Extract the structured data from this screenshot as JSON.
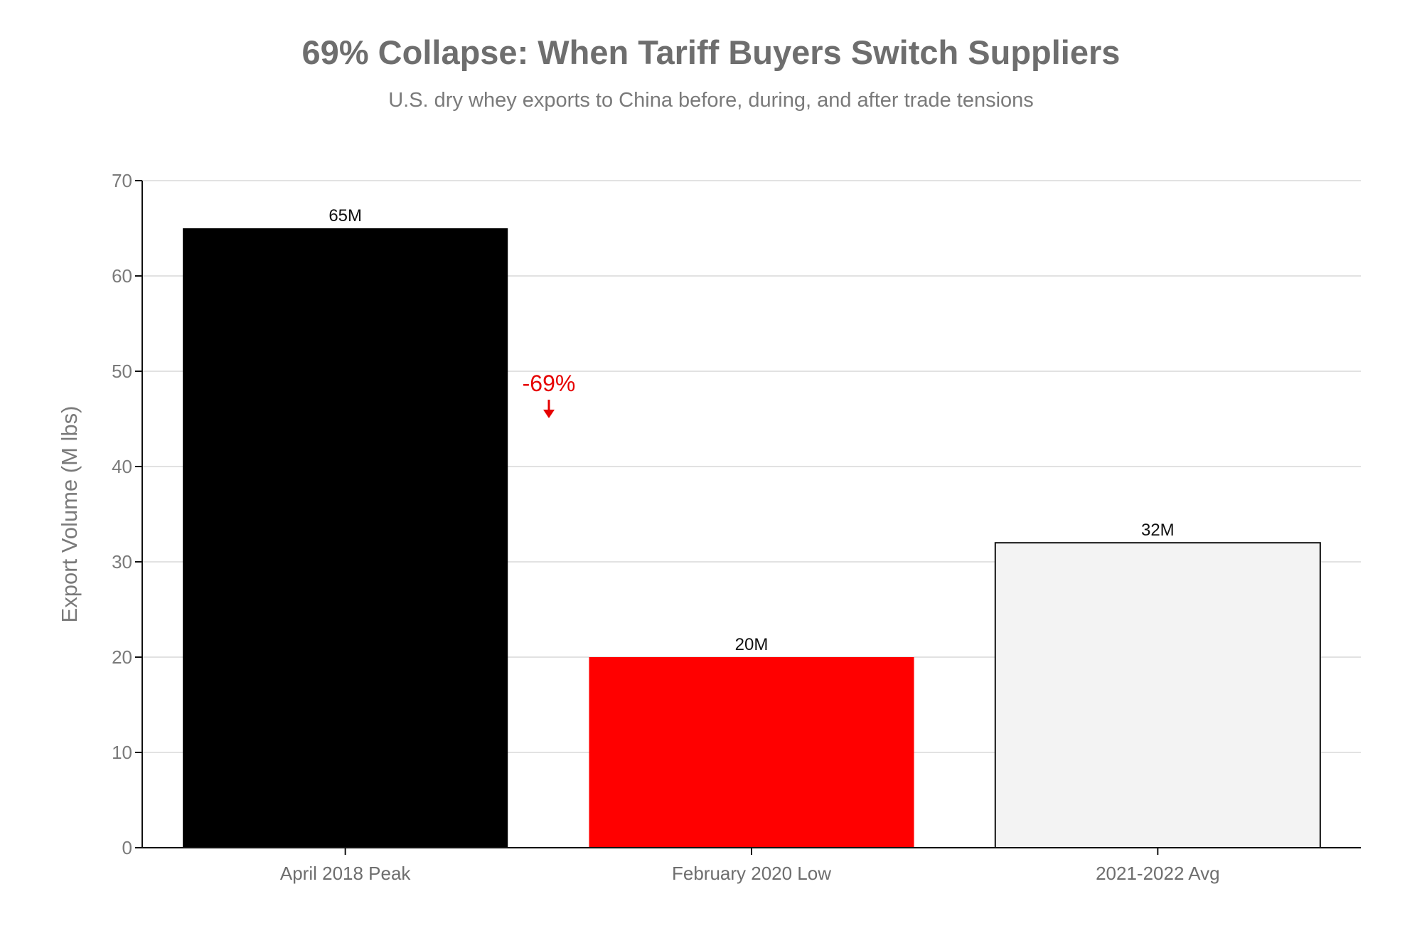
{
  "chart_data": {
    "type": "bar",
    "title": "69% Collapse: When Tariff Buyers Switch Suppliers",
    "subtitle": "U.S. dry whey exports to China before, during, and after trade tensions",
    "xlabel": "",
    "ylabel": "Export Volume (M lbs)",
    "categories": [
      "April 2018 Peak",
      "February 2020 Low",
      "2021-2022 Avg"
    ],
    "values": [
      65,
      20,
      32
    ],
    "data_labels": [
      "65M",
      "20M",
      "32M"
    ],
    "bar_colors": [
      "#000000",
      "#ff0000",
      "#f3f3f3"
    ],
    "bar_outline_color": "#111111",
    "ylim": [
      0,
      70
    ],
    "yticks": [
      0,
      10,
      20,
      30,
      40,
      50,
      60,
      70
    ],
    "grid": true,
    "legend": "none",
    "annotation": {
      "text": "-69%",
      "color": "#e60000",
      "arrow": "down"
    }
  }
}
